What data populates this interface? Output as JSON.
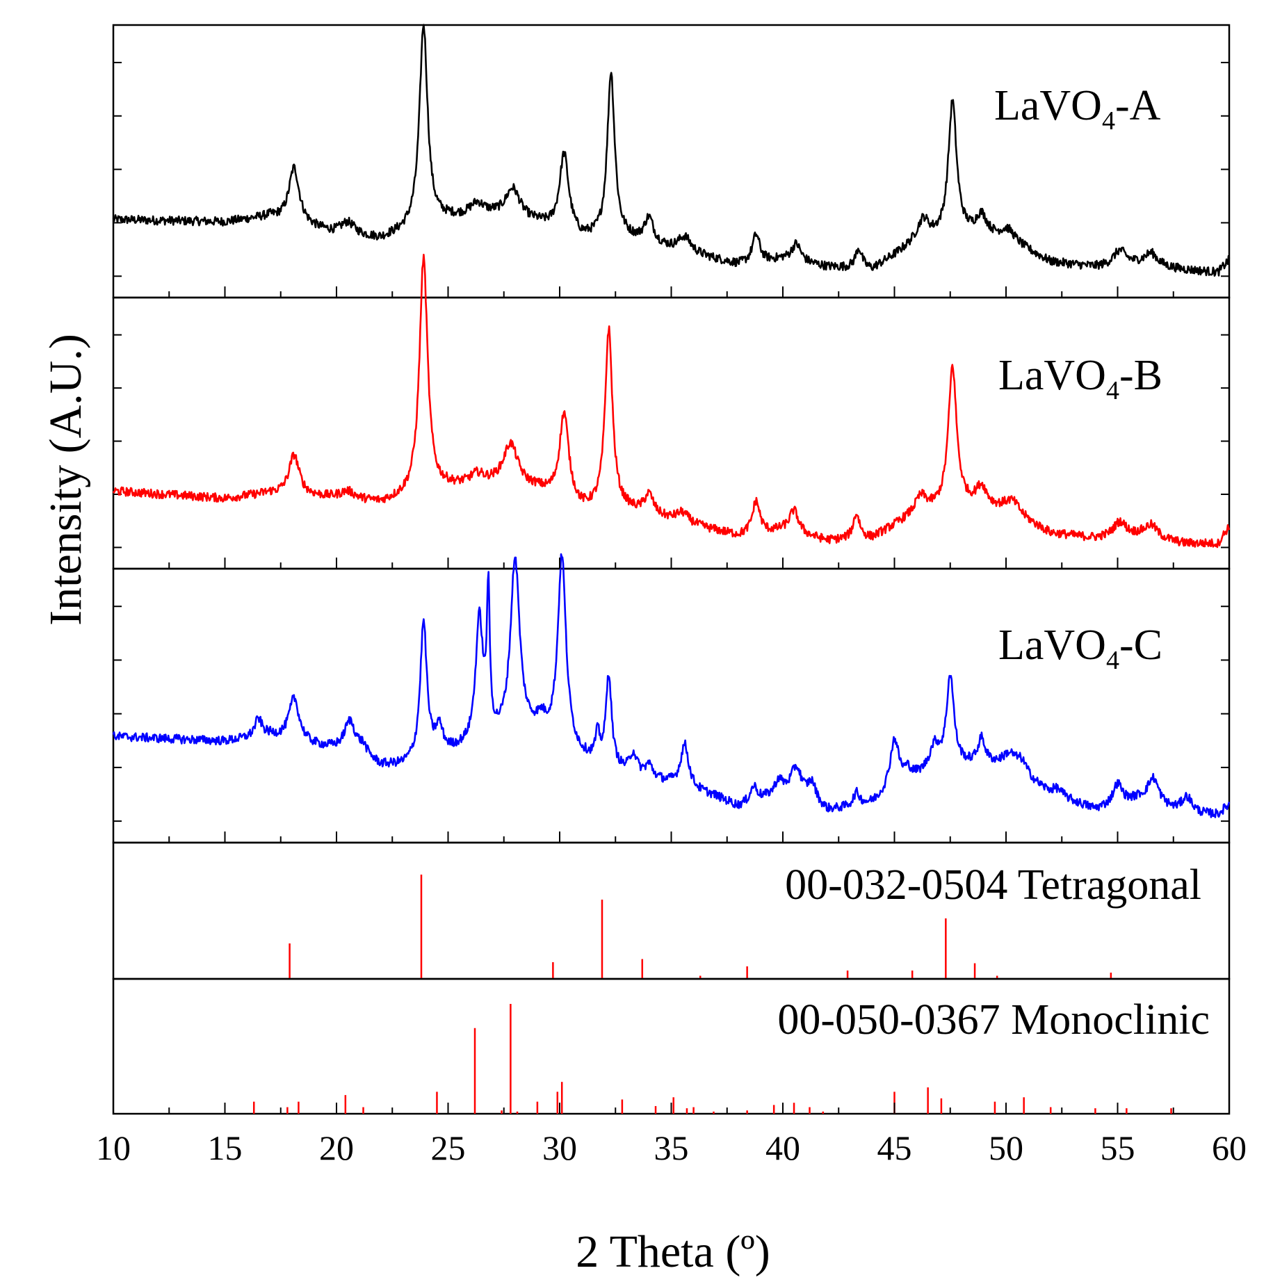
{
  "chart_data": {
    "type": "line",
    "title": "",
    "xlabel": "2 Theta (º)",
    "ylabel": "Intensity (A.U.)",
    "xlim": [
      10,
      60
    ],
    "x_ticks": [
      10,
      15,
      20,
      25,
      30,
      35,
      40,
      45,
      50,
      55,
      60
    ],
    "grid": false,
    "panels": [
      {
        "name": "LaVO4-A",
        "label_main": "LaVO",
        "label_sub": "4",
        "label_tail": "-A",
        "color": "#000000",
        "baseline": [
          [
            10,
            0.26
          ],
          [
            15,
            0.25
          ],
          [
            17,
            0.27
          ],
          [
            20,
            0.2
          ],
          [
            22,
            0.18
          ],
          [
            25,
            0.26
          ],
          [
            27,
            0.27
          ],
          [
            29,
            0.24
          ],
          [
            31,
            0.18
          ],
          [
            33,
            0.18
          ],
          [
            35,
            0.14
          ],
          [
            37,
            0.1
          ],
          [
            38,
            0.08
          ],
          [
            40,
            0.1
          ],
          [
            42,
            0.07
          ],
          [
            44,
            0.06
          ],
          [
            46,
            0.17
          ],
          [
            48,
            0.2
          ],
          [
            50,
            0.18
          ],
          [
            52,
            0.09
          ],
          [
            54,
            0.07
          ],
          [
            56,
            0.08
          ],
          [
            58,
            0.06
          ],
          [
            59.5,
            0.05
          ],
          [
            60,
            0.1
          ]
        ],
        "peaks": [
          [
            18.1,
            0.22,
            0.28
          ],
          [
            20.5,
            0.05,
            0.4
          ],
          [
            23.9,
            0.8,
            0.22
          ],
          [
            26.3,
            0.05,
            0.4
          ],
          [
            27.9,
            0.12,
            0.4
          ],
          [
            30.2,
            0.31,
            0.25
          ],
          [
            32.3,
            0.66,
            0.2
          ],
          [
            34.0,
            0.1,
            0.25
          ],
          [
            35.6,
            0.06,
            0.35
          ],
          [
            38.8,
            0.11,
            0.2
          ],
          [
            40.6,
            0.07,
            0.25
          ],
          [
            43.4,
            0.08,
            0.18
          ],
          [
            46.3,
            0.08,
            0.3
          ],
          [
            47.6,
            0.53,
            0.22
          ],
          [
            48.9,
            0.08,
            0.3
          ],
          [
            50.1,
            0.04,
            0.4
          ],
          [
            55.1,
            0.06,
            0.35
          ],
          [
            56.5,
            0.05,
            0.35
          ]
        ]
      },
      {
        "name": "LaVO4-B",
        "label_main": "LaVO",
        "label_sub": "4",
        "label_tail": "-B",
        "color": "#ff0000",
        "baseline": [
          [
            10,
            0.26
          ],
          [
            15,
            0.23
          ],
          [
            17,
            0.25
          ],
          [
            20,
            0.23
          ],
          [
            22,
            0.21
          ],
          [
            25,
            0.27
          ],
          [
            27,
            0.28
          ],
          [
            29,
            0.26
          ],
          [
            31,
            0.18
          ],
          [
            33,
            0.18
          ],
          [
            35,
            0.14
          ],
          [
            37,
            0.1
          ],
          [
            38,
            0.08
          ],
          [
            40,
            0.1
          ],
          [
            42,
            0.06
          ],
          [
            44,
            0.07
          ],
          [
            46,
            0.17
          ],
          [
            48,
            0.2
          ],
          [
            50,
            0.18
          ],
          [
            52,
            0.09
          ],
          [
            54,
            0.07
          ],
          [
            56,
            0.08
          ],
          [
            58,
            0.05
          ],
          [
            59.5,
            0.05
          ],
          [
            60,
            0.12
          ]
        ],
        "peaks": [
          [
            18.1,
            0.16,
            0.28
          ],
          [
            20.5,
            0.03,
            0.4
          ],
          [
            23.9,
            0.94,
            0.22
          ],
          [
            26.3,
            0.04,
            0.4
          ],
          [
            27.8,
            0.17,
            0.4
          ],
          [
            30.2,
            0.35,
            0.25
          ],
          [
            32.2,
            0.72,
            0.2
          ],
          [
            34.0,
            0.08,
            0.25
          ],
          [
            35.5,
            0.04,
            0.35
          ],
          [
            38.8,
            0.13,
            0.2
          ],
          [
            40.5,
            0.09,
            0.25
          ],
          [
            43.3,
            0.1,
            0.18
          ],
          [
            46.2,
            0.06,
            0.3
          ],
          [
            47.6,
            0.56,
            0.22
          ],
          [
            48.9,
            0.08,
            0.3
          ],
          [
            50.3,
            0.05,
            0.4
          ],
          [
            55.1,
            0.06,
            0.35
          ],
          [
            56.5,
            0.05,
            0.35
          ]
        ]
      },
      {
        "name": "LaVO4-C",
        "label_main": "LaVO",
        "label_sub": "4",
        "label_tail": "-C",
        "color": "#0000ff",
        "baseline": [
          [
            10,
            0.37
          ],
          [
            15,
            0.35
          ],
          [
            17,
            0.37
          ],
          [
            19,
            0.33
          ],
          [
            21,
            0.3
          ],
          [
            22,
            0.25
          ],
          [
            23,
            0.25
          ],
          [
            25,
            0.3
          ],
          [
            29,
            0.38
          ],
          [
            31,
            0.28
          ],
          [
            33,
            0.22
          ],
          [
            35,
            0.18
          ],
          [
            37,
            0.13
          ],
          [
            38,
            0.09
          ],
          [
            40,
            0.14
          ],
          [
            42,
            0.07
          ],
          [
            44,
            0.1
          ],
          [
            46,
            0.2
          ],
          [
            48,
            0.25
          ],
          [
            50,
            0.26
          ],
          [
            52,
            0.14
          ],
          [
            54,
            0.08
          ],
          [
            56,
            0.12
          ],
          [
            58,
            0.06
          ],
          [
            59.5,
            0.06
          ],
          [
            60,
            0.1
          ]
        ],
        "peaks": [
          [
            16.5,
            0.07,
            0.2
          ],
          [
            18.1,
            0.17,
            0.28
          ],
          [
            20.6,
            0.12,
            0.3
          ],
          [
            21.2,
            0.03,
            0.2
          ],
          [
            23.9,
            0.54,
            0.18
          ],
          [
            24.6,
            0.1,
            0.2
          ],
          [
            26.4,
            0.49,
            0.2
          ],
          [
            26.8,
            0.55,
            0.08
          ],
          [
            28.0,
            0.7,
            0.25
          ],
          [
            29.2,
            0.04,
            0.2
          ],
          [
            30.1,
            0.75,
            0.22
          ],
          [
            31.7,
            0.1,
            0.12
          ],
          [
            32.2,
            0.36,
            0.15
          ],
          [
            33.3,
            0.08,
            0.2
          ],
          [
            34.0,
            0.05,
            0.2
          ],
          [
            35.6,
            0.17,
            0.22
          ],
          [
            38.7,
            0.06,
            0.2
          ],
          [
            39.8,
            0.05,
            0.2
          ],
          [
            40.6,
            0.12,
            0.3
          ],
          [
            41.3,
            0.08,
            0.25
          ],
          [
            43.3,
            0.05,
            0.18
          ],
          [
            45.0,
            0.2,
            0.25
          ],
          [
            45.6,
            0.04,
            0.2
          ],
          [
            46.8,
            0.1,
            0.3
          ],
          [
            47.5,
            0.36,
            0.2
          ],
          [
            48.9,
            0.1,
            0.2
          ],
          [
            50.2,
            0.04,
            0.3
          ],
          [
            50.7,
            0.05,
            0.3
          ],
          [
            52.3,
            0.03,
            0.3
          ],
          [
            55.0,
            0.08,
            0.25
          ],
          [
            56.6,
            0.1,
            0.3
          ],
          [
            58.1,
            0.07,
            0.3
          ]
        ]
      }
    ],
    "references": [
      {
        "name": "00-032-0504 Tetragonal",
        "color": "#ff0000",
        "lines": [
          [
            17.9,
            0.34
          ],
          [
            23.8,
            1.0
          ],
          [
            29.7,
            0.16
          ],
          [
            31.9,
            0.76
          ],
          [
            33.7,
            0.19
          ],
          [
            36.3,
            0.03
          ],
          [
            38.4,
            0.12
          ],
          [
            42.9,
            0.08
          ],
          [
            45.8,
            0.08
          ],
          [
            47.3,
            0.58
          ],
          [
            48.6,
            0.15
          ],
          [
            49.6,
            0.03
          ],
          [
            54.7,
            0.06
          ]
        ]
      },
      {
        "name": "00-050-0367 Monoclinic",
        "color": "#ff0000",
        "lines": [
          [
            16.3,
            0.11
          ],
          [
            17.8,
            0.06
          ],
          [
            18.3,
            0.11
          ],
          [
            20.4,
            0.17
          ],
          [
            21.2,
            0.06
          ],
          [
            24.5,
            0.2
          ],
          [
            26.2,
            0.78
          ],
          [
            27.4,
            0.03
          ],
          [
            27.8,
            1.0
          ],
          [
            28.1,
            0.02
          ],
          [
            29.0,
            0.11
          ],
          [
            29.9,
            0.2
          ],
          [
            30.1,
            0.29
          ],
          [
            32.8,
            0.13
          ],
          [
            34.3,
            0.07
          ],
          [
            35.1,
            0.15
          ],
          [
            35.7,
            0.05
          ],
          [
            36.0,
            0.06
          ],
          [
            36.9,
            0.02
          ],
          [
            38.4,
            0.03
          ],
          [
            39.6,
            0.08
          ],
          [
            40.5,
            0.1
          ],
          [
            41.2,
            0.06
          ],
          [
            41.8,
            0.02
          ],
          [
            45.0,
            0.2
          ],
          [
            46.5,
            0.24
          ],
          [
            47.1,
            0.14
          ],
          [
            49.5,
            0.11
          ],
          [
            50.8,
            0.15
          ],
          [
            52.0,
            0.06
          ],
          [
            54.0,
            0.05
          ],
          [
            55.4,
            0.05
          ],
          [
            57.4,
            0.05
          ]
        ]
      }
    ]
  }
}
